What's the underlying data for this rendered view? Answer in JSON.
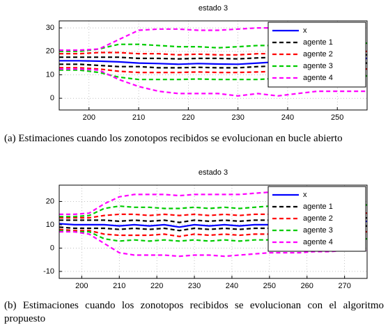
{
  "chart_data": [
    {
      "type": "line",
      "title": "estado 3",
      "caption": "(a)  Estimaciones cuando los zonotopos recibidos se evolucionan en bucle abierto",
      "x": [
        194,
        198,
        202,
        206,
        210,
        214,
        218,
        222,
        226,
        230,
        234,
        238,
        242,
        246,
        250,
        254,
        256
      ],
      "xlim": [
        194,
        256
      ],
      "xticks": [
        200,
        210,
        220,
        230,
        240,
        250
      ],
      "ylim": [
        -5,
        33
      ],
      "yticks": [
        0,
        10,
        20,
        30
      ],
      "grid": true,
      "legend": "upper right",
      "series": [
        {
          "name": "x",
          "color": "#0000ff",
          "dashed": false,
          "values": [
            16,
            16,
            15.8,
            15.5,
            15,
            14.8,
            14.5,
            14.8,
            14.6,
            14.5,
            15,
            15.5,
            16,
            16.3,
            16.5,
            16.8,
            17
          ]
        },
        {
          "name": "agente 1",
          "color": "#000000",
          "dashed": true,
          "values": [
            17.5,
            17.5,
            17.5,
            17.5,
            17,
            17,
            16.8,
            17,
            17,
            16.8,
            17.2,
            17.5,
            18,
            18,
            18.3,
            18.5,
            18.5
          ],
          "lower": [
            14.5,
            14.5,
            14,
            13.5,
            13.5,
            13,
            13,
            13.2,
            13,
            13,
            13.5,
            13.8,
            14,
            14.5,
            14.5,
            15,
            15
          ]
        },
        {
          "name": "agente 2",
          "color": "#ff0000",
          "dashed": true,
          "values": [
            19,
            19,
            19.5,
            19.5,
            19,
            19,
            18.5,
            18.8,
            18.5,
            18.5,
            19,
            19,
            19.5,
            19.8,
            20,
            20,
            20
          ],
          "lower": [
            13,
            13,
            12.5,
            11.5,
            11,
            11,
            11,
            11.2,
            11,
            11,
            11.2,
            11.5,
            12,
            12,
            12.3,
            12.5,
            12.5
          ]
        },
        {
          "name": "agente 3",
          "color": "#00cc00",
          "dashed": true,
          "values": [
            20,
            20,
            21,
            23,
            23,
            22.5,
            22,
            22,
            21.5,
            22,
            22.5,
            22.5,
            23,
            23,
            23.5,
            23.5,
            23.5
          ],
          "lower": [
            12,
            12,
            11,
            9,
            8,
            8,
            8,
            8.2,
            8,
            8,
            8,
            8.5,
            9,
            9,
            9,
            9.5,
            9.5
          ]
        },
        {
          "name": "agente 4",
          "color": "#ff00ff",
          "dashed": true,
          "values": [
            20.5,
            20.5,
            21,
            25,
            29,
            29.5,
            29.5,
            29,
            29,
            29.5,
            30,
            30,
            30,
            30,
            30,
            30,
            30
          ],
          "lower": [
            12.5,
            12.5,
            12,
            8,
            5,
            3,
            2,
            2,
            2,
            1,
            2,
            1,
            2,
            3,
            3,
            3,
            3
          ]
        }
      ]
    },
    {
      "type": "line",
      "title": "estado 3",
      "caption": "(b)  Estimaciones cuando los zonotopos recibidos se evolucionan con el algoritmo propuesto",
      "x": [
        194,
        198,
        202,
        206,
        210,
        214,
        218,
        222,
        226,
        230,
        234,
        238,
        242,
        246,
        250,
        254,
        258,
        262,
        266,
        270,
        274,
        276
      ],
      "xlim": [
        194,
        276
      ],
      "xticks": [
        200,
        210,
        220,
        230,
        240,
        250,
        260,
        270
      ],
      "ylim": [
        -13,
        27
      ],
      "yticks": [
        -10,
        0,
        10,
        20
      ],
      "grid": true,
      "legend": "upper right",
      "series": [
        {
          "name": "x",
          "color": "#0000ff",
          "dashed": false,
          "values": [
            10.5,
            10,
            10,
            10,
            9.5,
            10,
            9.5,
            10,
            9,
            10,
            9.5,
            10,
            9.5,
            10,
            10,
            10,
            10.5,
            11,
            11,
            11,
            11,
            11.5
          ]
        },
        {
          "name": "agente 1",
          "color": "#000000",
          "dashed": true,
          "values": [
            12,
            12,
            12,
            12,
            11.5,
            12,
            11.5,
            12,
            11,
            12,
            11.5,
            12,
            11.5,
            12,
            12,
            12,
            12.5,
            12.5,
            12.5,
            12.5,
            12.5,
            13
          ],
          "lower": [
            9,
            8.5,
            8.5,
            8.5,
            8,
            8.5,
            8,
            8.5,
            7.5,
            8.5,
            8,
            8.5,
            8,
            8.5,
            8.5,
            8.5,
            9,
            9,
            9,
            9,
            9,
            9.5
          ]
        },
        {
          "name": "agente 2",
          "color": "#ff0000",
          "dashed": true,
          "values": [
            13,
            13,
            13,
            14,
            14.5,
            14.5,
            14,
            14.5,
            14,
            14.5,
            14,
            14.5,
            14,
            14.5,
            14.5,
            14.5,
            15,
            15,
            15,
            15,
            15,
            15
          ],
          "lower": [
            8,
            7.5,
            7.5,
            6,
            5.5,
            5.5,
            5.5,
            6,
            5,
            6,
            5.5,
            6,
            5.5,
            6,
            6,
            6,
            6.5,
            7,
            7,
            7,
            7,
            7
          ]
        },
        {
          "name": "agente 3",
          "color": "#00cc00",
          "dashed": true,
          "values": [
            13.5,
            13.5,
            14,
            17,
            18,
            17.5,
            17.5,
            17,
            17,
            17.5,
            17,
            17.5,
            17,
            17.5,
            18,
            18,
            18,
            18.5,
            18.5,
            18.5,
            18.5,
            18.5
          ],
          "lower": [
            7.5,
            7,
            7,
            4,
            3,
            3.5,
            3,
            3.5,
            3,
            3.5,
            3,
            3.5,
            3,
            3.5,
            3.5,
            3.5,
            4,
            4,
            4,
            4,
            4,
            4
          ]
        },
        {
          "name": "agente 4",
          "color": "#ff00ff",
          "dashed": true,
          "values": [
            14.5,
            14.5,
            15,
            19,
            22,
            23,
            23,
            23,
            22.5,
            23,
            23,
            23,
            23,
            23.5,
            24,
            24,
            24,
            25,
            25,
            25.5,
            26,
            26
          ],
          "lower": [
            7,
            7,
            6,
            2,
            -2,
            -3,
            -3,
            -3,
            -3.5,
            -3,
            -3,
            -3.5,
            -3,
            -2.5,
            -2,
            -2,
            -2,
            -1.5,
            -1.5,
            -1,
            -1,
            -1
          ]
        }
      ]
    }
  ]
}
